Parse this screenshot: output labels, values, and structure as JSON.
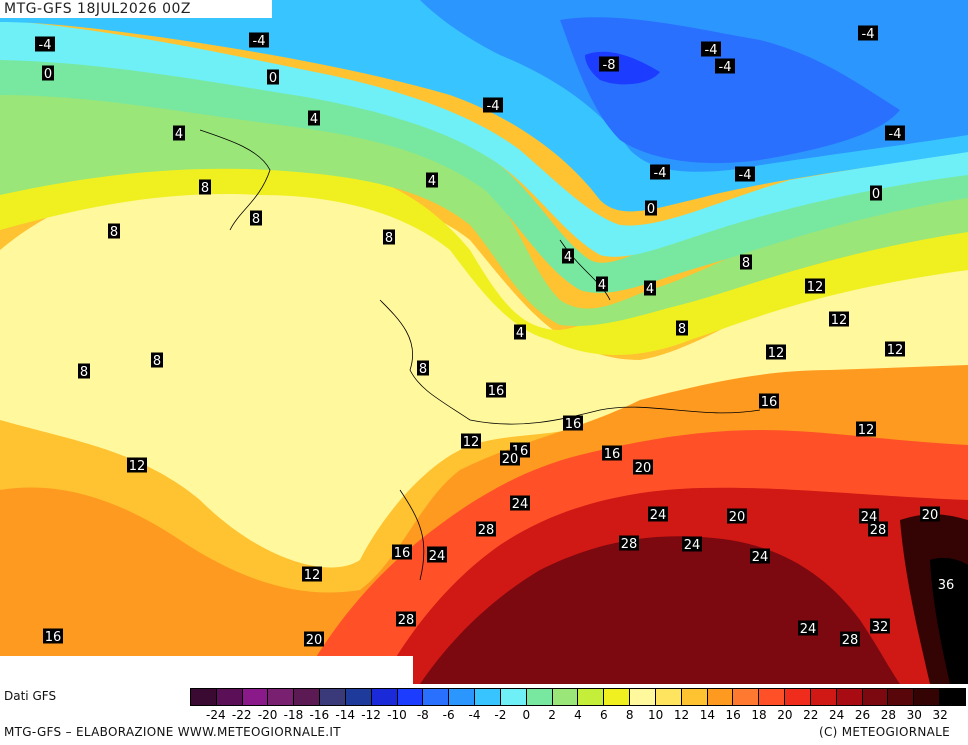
{
  "header": {
    "title": "MTG-GFS 18JUL2026 00Z"
  },
  "legend": {
    "source_label": "Dati GFS",
    "levels": [
      "-24",
      "-22",
      "-20",
      "-18",
      "-16",
      "-14",
      "-12",
      "-10",
      "-8",
      "-6",
      "-4",
      "-2",
      "0",
      "2",
      "4",
      "6",
      "8",
      "10",
      "12",
      "14",
      "16",
      "18",
      "20",
      "22",
      "24",
      "26",
      "28",
      "30",
      "32"
    ],
    "colors": [
      "#3a0a33",
      "#5a0f56",
      "#8a1a8a",
      "#7a2070",
      "#5c1a55",
      "#3a3a7a",
      "#1e3a9a",
      "#1a2ad8",
      "#1c3cff",
      "#2a70ff",
      "#2c96ff",
      "#38c4ff",
      "#6ef0f6",
      "#78e8a0",
      "#9ae678",
      "#c4ee3a",
      "#f0f020",
      "#fff89c",
      "#ffe460",
      "#ffc230",
      "#ff9a20",
      "#ff7a30",
      "#ff5028",
      "#f02c1c",
      "#d01814",
      "#a80c12",
      "#7c0810",
      "#58060a",
      "#340404",
      "#000000"
    ]
  },
  "footer": {
    "left": "MTG-GFS – ELABORAZIONE WWW.METEOGIORNALE.IT",
    "right": "(C) METEOGIORNALE"
  },
  "map_labels": [
    "-4",
    "-4",
    "0",
    "0",
    "-4",
    "-4",
    "-8",
    "-4",
    "-4",
    "-4",
    "4",
    "4",
    "8",
    "8",
    "8",
    "-4",
    "-4",
    "0",
    "0",
    "4",
    "4",
    "4",
    "4",
    "4",
    "8",
    "8",
    "8",
    "8",
    "8",
    "8",
    "12",
    "12",
    "12",
    "12",
    "12",
    "16",
    "16",
    "12",
    "12",
    "16",
    "16",
    "20",
    "16",
    "20",
    "24",
    "24",
    "28",
    "20",
    "20",
    "24",
    "28",
    "24",
    "24",
    "24",
    "16",
    "24",
    "28",
    "20",
    "36",
    "12",
    "28",
    "24",
    "32",
    "28",
    "16",
    "20"
  ]
}
